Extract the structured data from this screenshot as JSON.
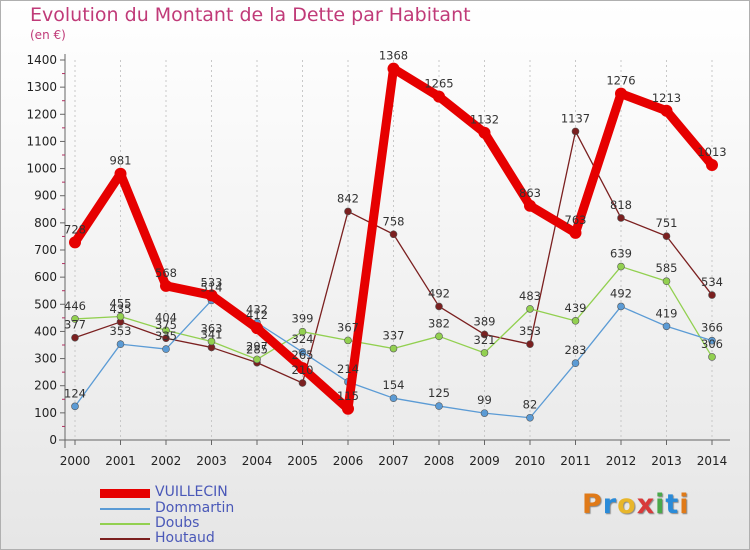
{
  "title": "Evolution du Montant de la Dette par Habitant",
  "unit_label": "(en €)",
  "logo": {
    "text": "Proxiti",
    "letter_colors": [
      "#e07a18",
      "#2a8bd8",
      "#e8b62a",
      "#d83a3a",
      "#4aa84a",
      "#2a8bd8",
      "#e07a18"
    ]
  },
  "chart_data": {
    "type": "line",
    "title": "Evolution du Montant de la Dette par Habitant",
    "ylabel": "(en €)",
    "xlabel": "",
    "ylim": [
      0,
      1400
    ],
    "yticks": [
      0,
      100,
      200,
      300,
      400,
      500,
      600,
      700,
      800,
      900,
      1000,
      1100,
      1200,
      1300,
      1400
    ],
    "categories": [
      "2000",
      "2001",
      "2002",
      "2003",
      "2004",
      "2005",
      "2006",
      "2007",
      "2008",
      "2009",
      "2010",
      "2011",
      "2012",
      "2013",
      "2014"
    ],
    "grid": "vertical",
    "legend_position": "bottom-left",
    "series": [
      {
        "name": "VUILLECIN",
        "color": "#e60000",
        "bold": true,
        "values": [
          728,
          981,
          568,
          533,
          412,
          265,
          115,
          1368,
          1265,
          1132,
          863,
          763,
          1276,
          1213,
          1013
        ]
      },
      {
        "name": "Dommartin",
        "color": "#5b9bd5",
        "values": [
          124,
          353,
          335,
          514,
          432,
          324,
          214,
          154,
          125,
          99,
          82,
          283,
          492,
          419,
          366
        ]
      },
      {
        "name": "Doubs",
        "color": "#92d050",
        "values": [
          446,
          455,
          404,
          363,
          297,
          399,
          367,
          337,
          382,
          321,
          483,
          439,
          639,
          585,
          306
        ]
      },
      {
        "name": "Houtaud",
        "color": "#7b2020",
        "values": [
          377,
          435,
          375,
          341,
          285,
          210,
          842,
          758,
          492,
          389,
          353,
          1137,
          818,
          751,
          534
        ]
      }
    ]
  }
}
